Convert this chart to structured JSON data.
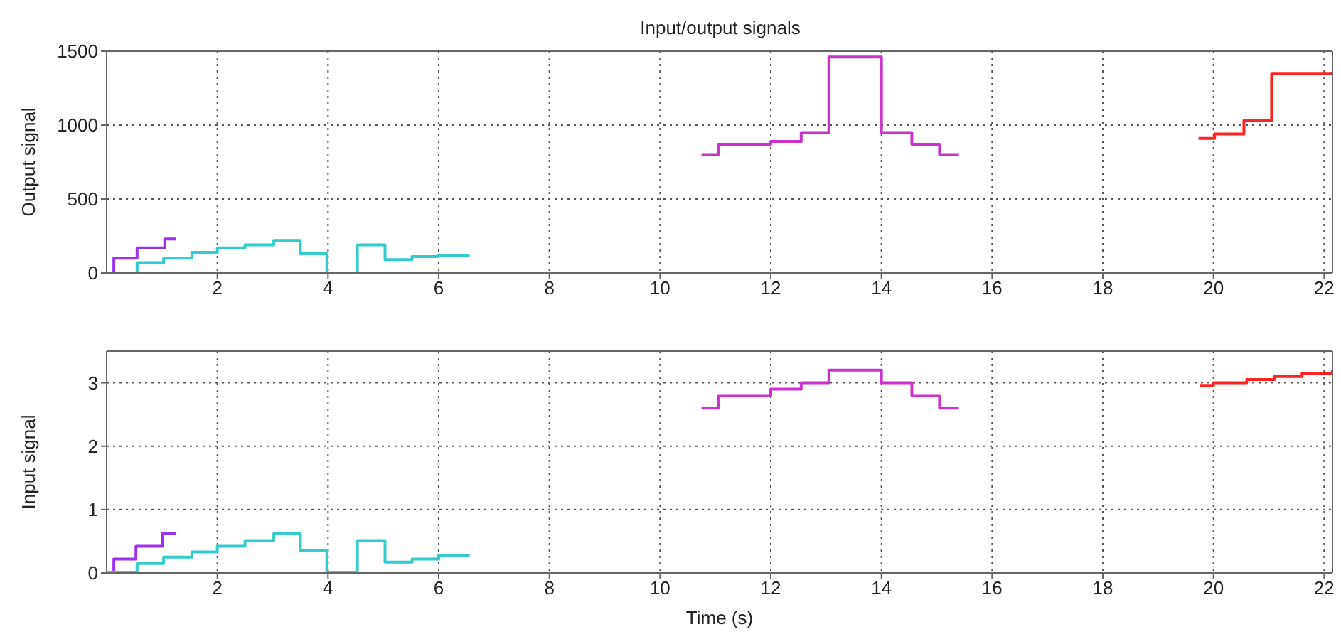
{
  "chart_data": [
    {
      "type": "step",
      "title": "Input/output signals",
      "ylabel": "Output signal",
      "xlim": [
        0,
        22.15
      ],
      "xticks": [
        2,
        4,
        6,
        8,
        10,
        12,
        14,
        16,
        18,
        20,
        22
      ],
      "ylim": [
        0,
        1500
      ],
      "yticks": [
        0,
        500,
        1000,
        1500
      ],
      "grid": true,
      "marker": "none",
      "line_style": "solid",
      "series": [
        {
          "color": "#9933ee",
          "x": [
            0,
            0.13,
            0.55,
            1.05,
            1.25
          ],
          "values": [
            0,
            100,
            170,
            230,
            230
          ]
        },
        {
          "color": "#33cccc",
          "x": [
            0,
            0.55,
            1.03,
            1.54,
            2.0,
            2.5,
            3.02,
            3.5,
            3.98,
            4.53,
            5.03,
            5.52,
            6.0,
            6.56
          ],
          "values": [
            0,
            70,
            100,
            140,
            170,
            190,
            220,
            130,
            0,
            190,
            90,
            110,
            120,
            120
          ]
        },
        {
          "color": "#cc33cc",
          "x": [
            10.75,
            11.05,
            12.0,
            12.55,
            13.05,
            14.0,
            14.55,
            15.05,
            15.4
          ],
          "values": [
            800,
            870,
            890,
            950,
            1460,
            950,
            870,
            800,
            800
          ]
        },
        {
          "color": "#ff2222",
          "x": [
            19.73,
            20.02,
            20.55,
            21.05,
            22.15
          ],
          "values": [
            910,
            940,
            1030,
            1350,
            1360
          ]
        }
      ]
    },
    {
      "type": "step",
      "xlabel": "Time (s)",
      "ylabel": "Input signal",
      "xlim": [
        0,
        22.15
      ],
      "xticks": [
        2,
        4,
        6,
        8,
        10,
        12,
        14,
        16,
        18,
        20,
        22
      ],
      "ylim": [
        0,
        3.5
      ],
      "yticks": [
        0,
        1,
        2,
        3
      ],
      "grid": true,
      "marker": "none",
      "line_style": "solid",
      "series": [
        {
          "color": "#9933ee",
          "x": [
            0,
            0.13,
            0.53,
            1.01,
            1.25
          ],
          "values": [
            0,
            0.22,
            0.42,
            0.62,
            0.62
          ]
        },
        {
          "color": "#33cccc",
          "x": [
            0,
            0.55,
            1.03,
            1.54,
            2.0,
            2.5,
            3.02,
            3.5,
            3.98,
            4.53,
            5.03,
            5.52,
            6.0,
            6.56
          ],
          "values": [
            0,
            0.15,
            0.25,
            0.33,
            0.42,
            0.51,
            0.62,
            0.35,
            0,
            0.51,
            0.17,
            0.22,
            0.28,
            0.28
          ]
        },
        {
          "color": "#cc33cc",
          "x": [
            10.75,
            11.05,
            12.0,
            12.55,
            13.05,
            14.0,
            14.55,
            15.05,
            15.4
          ],
          "values": [
            2.6,
            2.8,
            2.9,
            3.0,
            3.2,
            3.0,
            2.8,
            2.6,
            2.6
          ]
        },
        {
          "color": "#ff2222",
          "x": [
            19.75,
            20.0,
            20.6,
            21.1,
            21.6,
            22.15
          ],
          "values": [
            2.96,
            3.0,
            3.05,
            3.1,
            3.15,
            3.2
          ]
        }
      ]
    }
  ]
}
